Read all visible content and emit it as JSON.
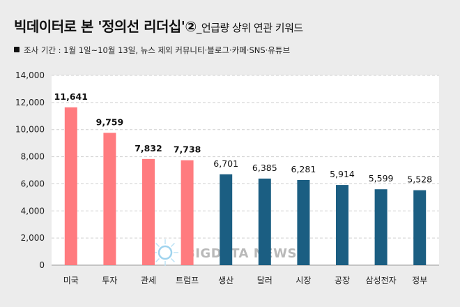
{
  "title": {
    "main": "빅데이터로 본 '정의선 리더십'②",
    "sub": "_언급량 상위 연관 키워드"
  },
  "period_note": "조사 기간 : 1월 1일~10월 13일, 뉴스 제외 커뮤니티·블로그·카페·SNS·유튜브",
  "watermark": "BIGDATA NEWS",
  "colors": {
    "highlight": "#ff7b7f",
    "normal": "#1b5e82",
    "background": "#ececec",
    "plot_background": "#ffffff",
    "grid": "#cfcfcf"
  },
  "chart_data": {
    "type": "bar",
    "categories": [
      "미국",
      "투자",
      "관세",
      "트럼프",
      "생산",
      "달러",
      "시장",
      "공장",
      "삼성전자",
      "정부"
    ],
    "values": [
      11641,
      9759,
      7832,
      7738,
      6701,
      6385,
      6281,
      5914,
      5599,
      5528
    ],
    "value_labels": [
      "11,641",
      "9,759",
      "7,832",
      "7,738",
      "6,701",
      "6,385",
      "6,281",
      "5,914",
      "5,599",
      "5,528"
    ],
    "highlighted_count": 4,
    "ylim": [
      0,
      14000
    ],
    "yticks": [
      0,
      2000,
      4000,
      6000,
      8000,
      10000,
      12000,
      14000
    ],
    "ytick_labels": [
      "0",
      "2,000",
      "4,000",
      "6,000",
      "8,000",
      "10,000",
      "12,000",
      "14,000"
    ],
    "grid": true
  }
}
